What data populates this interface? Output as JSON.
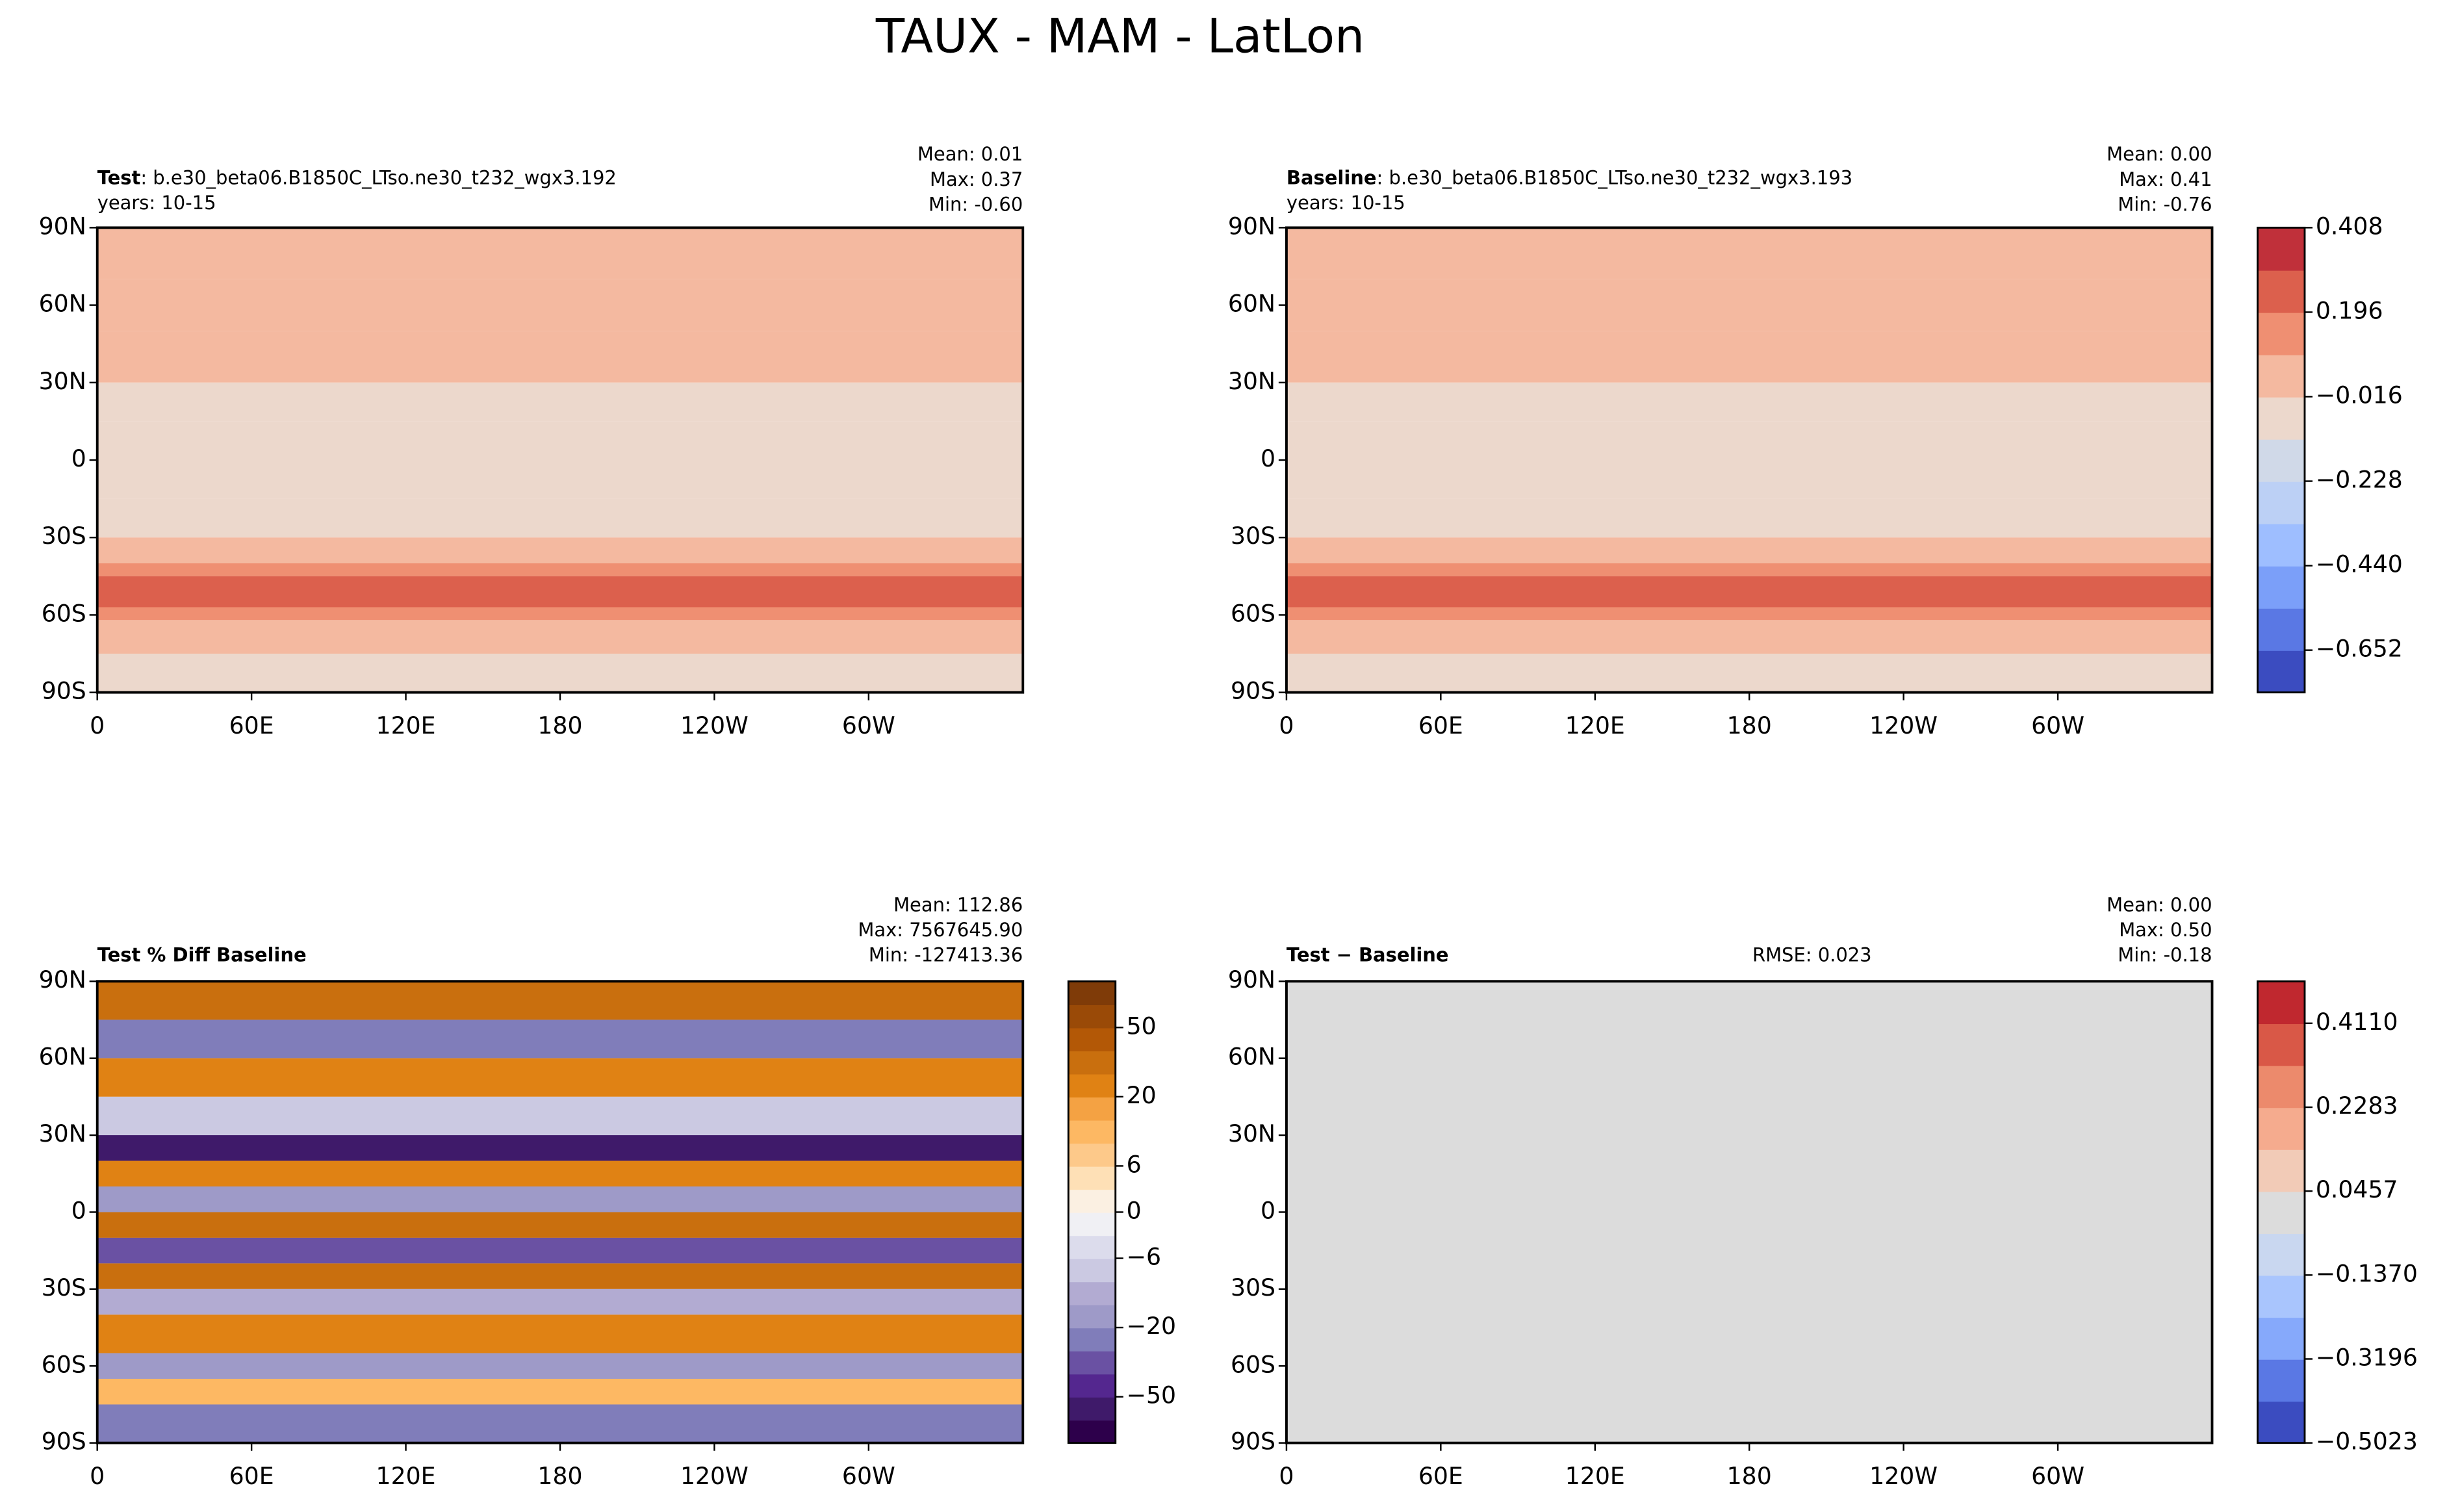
{
  "title": "TAUX - MAM - LatLon",
  "chart_data": [
    {
      "type": "map",
      "title_label": "Test",
      "title_text": ": b.e30_beta06.B1850C_LTso.ne30_t232_wgx3.192",
      "subtitle": "years: 10-15",
      "stats": [
        "Mean:  0.01",
        "Max:  0.37",
        "Min: -0.60"
      ],
      "xlim": [
        0,
        360
      ],
      "ylim": [
        -90,
        90
      ],
      "xticks": [
        0,
        {
          "value": 60,
          "label": "60E"
        },
        {
          "value": 120,
          "label": "120E"
        },
        180,
        {
          "value": 240,
          "label": "120W"
        },
        {
          "value": 300,
          "label": "60W"
        }
      ],
      "yticks": [
        {
          "value": 90,
          "label": "90N"
        },
        {
          "value": 60,
          "label": "60N"
        },
        {
          "value": 30,
          "label": "30N"
        },
        0,
        {
          "value": -30,
          "label": "30S"
        },
        {
          "value": -60,
          "label": "60S"
        },
        {
          "value": -90,
          "label": "90S"
        }
      ],
      "zonal": [
        {
          "lat": [
            70,
            90
          ],
          "value": 0.03
        },
        {
          "lat": [
            50,
            70
          ],
          "value": 0.05
        },
        {
          "lat": [
            30,
            50
          ],
          "value": 0.03
        },
        {
          "lat": [
            15,
            30
          ],
          "value": -0.05
        },
        {
          "lat": [
            -15,
            15
          ],
          "value": -0.07
        },
        {
          "lat": [
            -30,
            -15
          ],
          "value": -0.06
        },
        {
          "lat": [
            -40,
            -30
          ],
          "value": 0.03
        },
        {
          "lat": [
            -45,
            -40
          ],
          "value": 0.14
        },
        {
          "lat": [
            -57,
            -45
          ],
          "value": 0.25
        },
        {
          "lat": [
            -62,
            -57
          ],
          "value": 0.14
        },
        {
          "lat": [
            -75,
            -62
          ],
          "value": 0.03
        },
        {
          "lat": [
            -90,
            -75
          ],
          "value": -0.05
        }
      ]
    },
    {
      "type": "map",
      "title_label": "Baseline",
      "title_text": ": b.e30_beta06.B1850C_LTso.ne30_t232_wgx3.193",
      "subtitle": "years: 10-15",
      "stats": [
        "Mean:  0.00",
        "Max:  0.41",
        "Min: -0.76"
      ],
      "xlim": [
        0,
        360
      ],
      "ylim": [
        -90,
        90
      ],
      "xticks": [
        0,
        {
          "value": 60,
          "label": "60E"
        },
        {
          "value": 120,
          "label": "120E"
        },
        180,
        {
          "value": 240,
          "label": "120W"
        },
        {
          "value": 300,
          "label": "60W"
        }
      ],
      "yticks": [
        {
          "value": 90,
          "label": "90N"
        },
        {
          "value": 60,
          "label": "60N"
        },
        {
          "value": 30,
          "label": "30N"
        },
        0,
        {
          "value": -30,
          "label": "30S"
        },
        {
          "value": -60,
          "label": "60S"
        },
        {
          "value": -90,
          "label": "90S"
        }
      ],
      "zonal": [
        {
          "lat": [
            70,
            90
          ],
          "value": 0.03
        },
        {
          "lat": [
            50,
            70
          ],
          "value": 0.05
        },
        {
          "lat": [
            30,
            50
          ],
          "value": 0.03
        },
        {
          "lat": [
            15,
            30
          ],
          "value": -0.05
        },
        {
          "lat": [
            -15,
            15
          ],
          "value": -0.08
        },
        {
          "lat": [
            -30,
            -15
          ],
          "value": -0.06
        },
        {
          "lat": [
            -40,
            -30
          ],
          "value": 0.03
        },
        {
          "lat": [
            -45,
            -40
          ],
          "value": 0.14
        },
        {
          "lat": [
            -57,
            -45
          ],
          "value": 0.26
        },
        {
          "lat": [
            -62,
            -57
          ],
          "value": 0.14
        },
        {
          "lat": [
            -75,
            -62
          ],
          "value": 0.03
        },
        {
          "lat": [
            -90,
            -75
          ],
          "value": -0.05
        }
      ],
      "colorbar": {
        "clim": [
          -0.758,
          0.408
        ],
        "colors": [
          "#3b4cc0",
          "#5a78e4",
          "#7b9ff9",
          "#9ebeff",
          "#bcd0f5",
          "#d0d9e8",
          "#ecd8cc",
          "#f4b9a0",
          "#ef8f72",
          "#dc604d",
          "#c0303a"
        ],
        "ticks": [
          0.408,
          0.196,
          {
            "value": -0.016,
            "label": "−0.016"
          },
          {
            "value": -0.228,
            "label": "−0.228"
          },
          {
            "value": -0.44,
            "label": "−0.440"
          },
          {
            "value": -0.652,
            "label": "−0.652"
          }
        ]
      }
    },
    {
      "type": "map",
      "title_label": "Test % Diff Baseline",
      "stats": [
        "Mean: 112.86",
        "Max: 7567645.90",
        "Min: -127413.36"
      ],
      "xlim": [
        0,
        360
      ],
      "ylim": [
        -90,
        90
      ],
      "xticks": [
        0,
        {
          "value": 60,
          "label": "60E"
        },
        {
          "value": 120,
          "label": "120E"
        },
        180,
        {
          "value": 240,
          "label": "120W"
        },
        {
          "value": 300,
          "label": "60W"
        }
      ],
      "yticks": [
        {
          "value": 90,
          "label": "90N"
        },
        {
          "value": 60,
          "label": "60N"
        },
        {
          "value": 30,
          "label": "30N"
        },
        0,
        {
          "value": -30,
          "label": "30S"
        },
        {
          "value": -60,
          "label": "60S"
        },
        {
          "value": -90,
          "label": "90S"
        }
      ],
      "zonal": [
        {
          "lat": [
            75,
            90
          ],
          "value": 30
        },
        {
          "lat": [
            60,
            75
          ],
          "value": -30
        },
        {
          "lat": [
            45,
            60
          ],
          "value": 20
        },
        {
          "lat": [
            30,
            45
          ],
          "value": -10
        },
        {
          "lat": [
            20,
            30
          ],
          "value": -60
        },
        {
          "lat": [
            10,
            20
          ],
          "value": 20
        },
        {
          "lat": [
            0,
            10
          ],
          "value": -20
        },
        {
          "lat": [
            -10,
            0
          ],
          "value": 30
        },
        {
          "lat": [
            -20,
            -10
          ],
          "value": -40
        },
        {
          "lat": [
            -30,
            -20
          ],
          "value": 30
        },
        {
          "lat": [
            -40,
            -30
          ],
          "value": -15
        },
        {
          "lat": [
            -55,
            -40
          ],
          "value": 25
        },
        {
          "lat": [
            -65,
            -55
          ],
          "value": -20
        },
        {
          "lat": [
            -75,
            -65
          ],
          "value": 10
        },
        {
          "lat": [
            -90,
            -75
          ],
          "value": -30
        }
      ],
      "colorbar": {
        "levels": [
          -100,
          -75,
          -50,
          -40,
          -30,
          -20,
          -15,
          -10,
          -6,
          -3,
          0,
          3,
          6,
          10,
          15,
          20,
          30,
          40,
          50,
          75,
          100
        ],
        "colors": [
          "#2d004b",
          "#3f1a6a",
          "#54278f",
          "#6a51a3",
          "#807dba",
          "#9e9ac8",
          "#b2abd2",
          "#cbc9e2",
          "#dcdcec",
          "#f0f0f4",
          "#fbf0e2",
          "#fee0b6",
          "#fdc98a",
          "#fdb863",
          "#f4a243",
          "#e08214",
          "#c96f0e",
          "#b35806",
          "#9a4a07",
          "#7f3b08"
        ],
        "ticks": [
          50,
          20,
          6,
          0,
          {
            "value": -6,
            "label": "−6"
          },
          {
            "value": -20,
            "label": "−20"
          },
          {
            "value": -50,
            "label": "−50"
          }
        ]
      }
    },
    {
      "type": "map",
      "title_label": "Test − Baseline",
      "annotation": "RMSE: 0.023",
      "stats": [
        "Mean:  0.00",
        "Max:  0.50",
        "Min: -0.18"
      ],
      "xlim": [
        0,
        360
      ],
      "ylim": [
        -90,
        90
      ],
      "xticks": [
        0,
        {
          "value": 60,
          "label": "60E"
        },
        {
          "value": 120,
          "label": "120E"
        },
        180,
        {
          "value": 240,
          "label": "120W"
        },
        {
          "value": 300,
          "label": "60W"
        }
      ],
      "yticks": [
        {
          "value": 90,
          "label": "90N"
        },
        {
          "value": 60,
          "label": "60N"
        },
        {
          "value": 30,
          "label": "30N"
        },
        0,
        {
          "value": -30,
          "label": "30S"
        },
        {
          "value": -60,
          "label": "60S"
        },
        {
          "value": -90,
          "label": "90S"
        }
      ],
      "zonal": [
        {
          "lat": [
            -90,
            90
          ],
          "value": 0
        }
      ],
      "colorbar": {
        "clim": [
          -0.5023,
          0.5023
        ],
        "colors": [
          "#3b4cc0",
          "#5a78e4",
          "#86a9fb",
          "#a9c5fd",
          "#c9d7f0",
          "#dcdcdc",
          "#f2cbb7",
          "#f5ab8e",
          "#ec8a6c",
          "#d95847",
          "#c0282f"
        ],
        "ticks": [
          {
            "value": 0.411,
            "label": "0.4110"
          },
          0.2283,
          0.0457,
          {
            "value": -0.137,
            "label": "−0.1370"
          },
          {
            "value": -0.3196,
            "label": "−0.3196"
          },
          {
            "value": -0.5023,
            "label": "−0.5023"
          }
        ]
      }
    }
  ]
}
